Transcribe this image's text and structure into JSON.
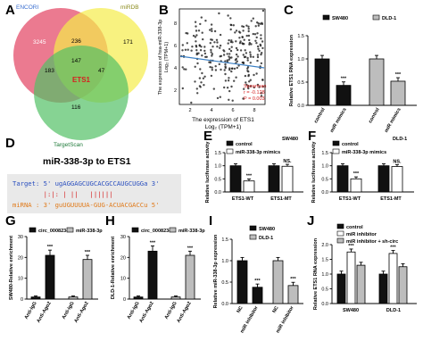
{
  "panels": {
    "A": {
      "label": "A",
      "sets": [
        {
          "name": "ENCORI",
          "color": "#e8637d",
          "label_color": "#ffffff"
        },
        {
          "name": "miRDB",
          "color": "#f5ec4a",
          "label_color": "#7a7a1a"
        },
        {
          "name": "TargetScan",
          "color": "#52c165",
          "label_color": "#ffffff"
        }
      ],
      "regions": {
        "encori_only": "3245",
        "mirdb_only": "171",
        "targetscan_only": "116",
        "encori_mirdb": "236",
        "encori_targetscan": "183",
        "mirdb_targetscan": "47",
        "all_three": "147"
      },
      "gene": "ETS1"
    },
    "B": {
      "label": "B",
      "ylabel_line1": "The expression of hsa-miR-338-3p",
      "ylabel_line2": "Log₂ (TPM+1)",
      "xlabel_line1": "The expression of ETS1",
      "xlabel_line2": "Log₂ (TPM+1)",
      "stats": [
        "Spearman",
        "r = -0.128",
        "P = 0.003"
      ],
      "xticks": [
        "2",
        "4",
        "6",
        "8"
      ],
      "yticks": [
        "2",
        "4",
        "6",
        "8"
      ]
    },
    "C": {
      "label": "C",
      "ylabel": "Relative ETS1 RNA expression",
      "legend": [
        "SW480",
        "DLD-1"
      ],
      "xticks": [
        "control",
        "miR mimics",
        "control",
        "miR mimics"
      ],
      "yticks": [
        "0.0",
        "0.5",
        "1.0",
        "1.5"
      ],
      "sig": "***"
    },
    "D": {
      "label": "D",
      "title": "miR-338-3p to ETS1",
      "target_line": "Target: 5' ugAGGAGCUGCACGCCAUGCUGGa 3'",
      "pairs_line": "        |:|: | ||   ||||||",
      "mirna_line": "miRNA : 3' guUGUUUUA-GUG-ACUACGACCu 5'"
    },
    "E": {
      "label": "E",
      "subtitle": "SW480",
      "ylabel": "Relative luciferase activity",
      "legend": [
        "control",
        "miR-338-3p mimics"
      ],
      "xticks": [
        "ETS1-WT",
        "ETS1-MT"
      ],
      "yticks": [
        "0.0",
        "0.5",
        "1.0",
        "1.5"
      ],
      "sig": [
        "***",
        "NS."
      ]
    },
    "F": {
      "label": "F",
      "subtitle": "DLD-1",
      "ylabel": "Relative luciferase activity",
      "legend": [
        "control",
        "miR-338-3p mimics"
      ],
      "xticks": [
        "ETS1-WT",
        "ETS1-MT"
      ],
      "yticks": [
        "0.0",
        "0.5",
        "1.0",
        "1.5"
      ],
      "sig": [
        "***",
        "NS."
      ]
    },
    "G": {
      "label": "G",
      "ylabel": "SW480-Relative enrichment",
      "legend": [
        "circ_0008234",
        "miR-338-3p"
      ],
      "xticks": [
        "Anti-IgG",
        "Anti-Ago2",
        "Anti-IgG",
        "Anti-Ago2"
      ],
      "yticks": [
        "0",
        "10",
        "20",
        "30"
      ],
      "sig": "***"
    },
    "H": {
      "label": "H",
      "ylabel": "DLD-1-Relative enrichment",
      "legend": [
        "circ_0008234",
        "miR-338-3p"
      ],
      "xticks": [
        "Anti-IgG",
        "Anti-Ago2",
        "Anti-IgG",
        "Anti-Ago2"
      ],
      "yticks": [
        "0",
        "10",
        "20",
        "30"
      ],
      "sig": "***"
    },
    "I": {
      "label": "I",
      "ylabel": "Relative miR-338-3p expression",
      "legend": [
        "SW480",
        "DLD-1"
      ],
      "xticks": [
        "NC",
        "miR inhibitor",
        "NC",
        "miR inhibitor"
      ],
      "yticks": [
        "0.0",
        "0.5",
        "1.0",
        "1.5"
      ],
      "sig": "***"
    },
    "J": {
      "label": "J",
      "ylabel": "Relative ETS1 RNA expression",
      "legend": [
        "control",
        "miR inhibitor",
        "miR inhibitor + sh-circ"
      ],
      "xticks": [
        "SW480",
        "DLD-1"
      ],
      "yticks": [
        "0.0",
        "0.5",
        "1.0",
        "1.5",
        "2.0"
      ],
      "sig": "***"
    }
  },
  "chart_data": [
    {
      "panel": "C",
      "type": "bar",
      "categories": [
        "control",
        "miR mimics"
      ],
      "series": [
        {
          "name": "SW480",
          "values": [
            1.0,
            0.43
          ]
        },
        {
          "name": "DLD-1",
          "values": [
            1.0,
            0.52
          ]
        }
      ],
      "ylim": [
        0,
        1.5
      ],
      "ylabel": "Relative ETS1 RNA expression"
    },
    {
      "panel": "E",
      "type": "bar",
      "categories": [
        "ETS1-WT",
        "ETS1-MT"
      ],
      "series": [
        {
          "name": "control",
          "values": [
            1.0,
            1.0
          ]
        },
        {
          "name": "miR-338-3p mimics",
          "values": [
            0.42,
            0.98
          ]
        }
      ],
      "ylim": [
        0,
        1.5
      ],
      "ylabel": "Relative luciferase activity"
    },
    {
      "panel": "F",
      "type": "bar",
      "categories": [
        "ETS1-WT",
        "ETS1-MT"
      ],
      "series": [
        {
          "name": "control",
          "values": [
            1.0,
            1.0
          ]
        },
        {
          "name": "miR-338-3p mimics",
          "values": [
            0.5,
            0.97
          ]
        }
      ],
      "ylim": [
        0,
        1.5
      ],
      "ylabel": "Relative luciferase activity"
    },
    {
      "panel": "G",
      "type": "bar",
      "categories": [
        "Anti-IgG",
        "Anti-Ago2",
        "Anti-IgG",
        "Anti-Ago2"
      ],
      "values": [
        1,
        21,
        1,
        19
      ],
      "ylim": [
        0,
        30
      ],
      "ylabel": "SW480-Relative enrichment"
    },
    {
      "panel": "H",
      "type": "bar",
      "categories": [
        "Anti-IgG",
        "Anti-Ago2",
        "Anti-IgG",
        "Anti-Ago2"
      ],
      "values": [
        1,
        23,
        1,
        21
      ],
      "ylim": [
        0,
        30
      ],
      "ylabel": "DLD-1-Relative enrichment"
    },
    {
      "panel": "I",
      "type": "bar",
      "categories": [
        "NC",
        "miR inhibitor",
        "NC",
        "miR inhibitor"
      ],
      "values": [
        1.0,
        0.38,
        1.0,
        0.42
      ],
      "ylim": [
        0,
        1.5
      ],
      "ylabel": "Relative miR-338-3p expression"
    },
    {
      "panel": "J",
      "type": "bar",
      "categories": [
        "SW480",
        "DLD-1"
      ],
      "series": [
        {
          "name": "control",
          "values": [
            1.0,
            1.0
          ]
        },
        {
          "name": "miR inhibitor",
          "values": [
            1.75,
            1.7
          ]
        },
        {
          "name": "miR inhibitor + sh-circ",
          "values": [
            1.3,
            1.25
          ]
        }
      ],
      "ylim": [
        0,
        2.0
      ],
      "ylabel": "Relative ETS1 RNA expression"
    }
  ]
}
